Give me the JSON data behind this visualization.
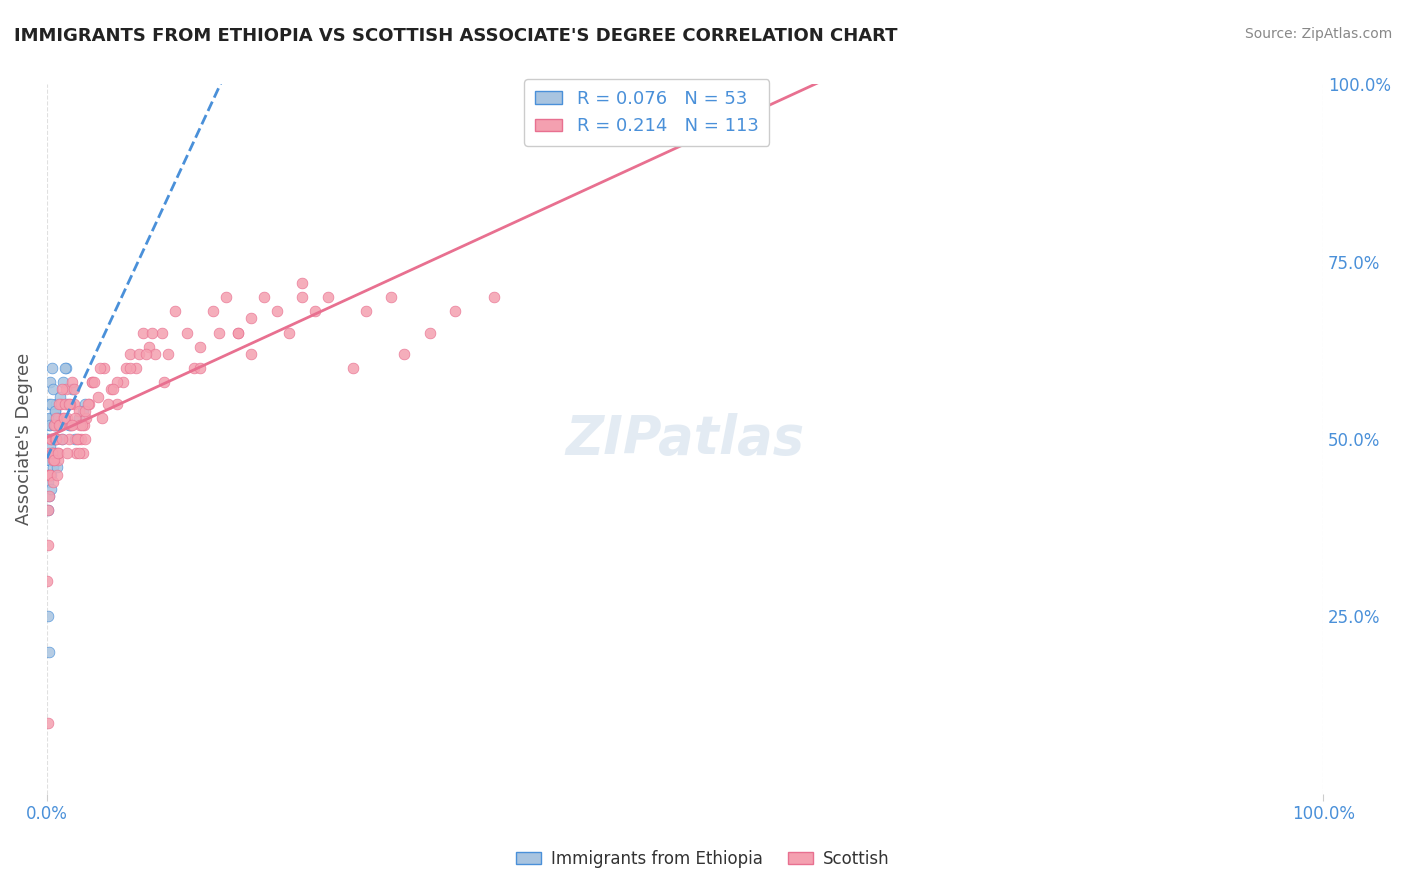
{
  "title": "IMMIGRANTS FROM ETHIOPIA VS SCOTTISH ASSOCIATE'S DEGREE CORRELATION CHART",
  "source": "Source: ZipAtlas.com",
  "xlabel": "",
  "ylabel": "Associate's Degree",
  "xlim": [
    0,
    100
  ],
  "ylim": [
    0,
    100
  ],
  "x_ticks": [
    0,
    10,
    20,
    30,
    40,
    50,
    60,
    70,
    80,
    90,
    100
  ],
  "x_tick_labels": [
    "0.0%",
    "",
    "",
    "",
    "",
    "",
    "",
    "",
    "",
    "",
    "100.0%"
  ],
  "y_ticks_right": [
    25,
    50,
    75,
    100
  ],
  "y_tick_labels_right": [
    "25.0%",
    "50.0%",
    "75.0%",
    "100.0%"
  ],
  "series1_color": "#a8c4e0",
  "series2_color": "#f4a0b0",
  "trend1_color": "#4a90d9",
  "trend2_color": "#e87090",
  "R1": 0.076,
  "N1": 53,
  "R2": 0.214,
  "N2": 113,
  "legend_label1": "Immigrants from Ethiopia",
  "legend_label2": "Scottish",
  "watermark": "ZIPatlas",
  "background_color": "#ffffff",
  "grid_color": "#e0e0e0",
  "title_color": "#222222",
  "axis_label_color": "#4a90d9",
  "series1_x": [
    0.1,
    0.15,
    0.2,
    0.25,
    0.3,
    0.35,
    0.4,
    0.5,
    0.6,
    0.7,
    0.8,
    1.0,
    1.2,
    1.5,
    2.0,
    2.5,
    3.0,
    0.05,
    0.08,
    0.12,
    0.18,
    0.22,
    0.28,
    0.32,
    0.38,
    0.45,
    0.55,
    0.65,
    0.75,
    0.9,
    1.1,
    1.3,
    1.6,
    1.8,
    2.2,
    2.8,
    0.06,
    0.09,
    0.14,
    0.19,
    0.24,
    0.29,
    0.34,
    0.39,
    0.44,
    0.52,
    0.62,
    0.72,
    0.82,
    1.4,
    1.7,
    0.05,
    0.16
  ],
  "series1_y": [
    50,
    52,
    55,
    58,
    48,
    53,
    60,
    57,
    54,
    55,
    52,
    56,
    50,
    60,
    57,
    53,
    55,
    45,
    48,
    50,
    53,
    47,
    52,
    55,
    50,
    48,
    52,
    54,
    50,
    53,
    52,
    58,
    55,
    52,
    50,
    54,
    40,
    44,
    42,
    47,
    49,
    43,
    45,
    48,
    46,
    50,
    52,
    48,
    46,
    60,
    52,
    25,
    20
  ],
  "series2_x": [
    0.1,
    0.3,
    0.5,
    0.7,
    0.9,
    1.1,
    1.3,
    1.5,
    1.7,
    1.9,
    2.1,
    2.3,
    2.5,
    2.7,
    2.9,
    3.1,
    3.3,
    3.5,
    4.0,
    4.5,
    5.0,
    5.5,
    6.0,
    6.5,
    7.0,
    7.5,
    8.0,
    8.5,
    9.0,
    10.0,
    11.0,
    12.0,
    13.0,
    14.0,
    15.0,
    16.0,
    17.0,
    18.0,
    20.0,
    22.0,
    25.0,
    27.0,
    30.0,
    32.0,
    35.0,
    0.15,
    0.25,
    0.35,
    0.45,
    0.55,
    0.65,
    0.75,
    0.85,
    0.95,
    1.0,
    1.2,
    1.4,
    1.6,
    1.8,
    2.0,
    2.2,
    2.4,
    2.6,
    2.8,
    3.0,
    3.5,
    4.2,
    4.8,
    5.5,
    6.2,
    7.2,
    8.2,
    9.5,
    11.5,
    13.5,
    16.0,
    19.0,
    21.0,
    24.0,
    28.0,
    0.08,
    0.18,
    0.28,
    0.38,
    0.48,
    0.58,
    0.68,
    0.78,
    0.88,
    0.98,
    1.15,
    1.35,
    1.55,
    1.75,
    1.95,
    2.15,
    2.35,
    2.55,
    2.75,
    2.95,
    3.2,
    3.7,
    4.3,
    5.2,
    6.5,
    7.8,
    9.2,
    12.0,
    15.0,
    20.0,
    0.05,
    0.04,
    0.06
  ],
  "series2_y": [
    45,
    50,
    48,
    52,
    47,
    55,
    53,
    57,
    50,
    52,
    55,
    48,
    54,
    50,
    52,
    53,
    55,
    58,
    56,
    60,
    57,
    55,
    58,
    62,
    60,
    65,
    63,
    62,
    65,
    68,
    65,
    63,
    68,
    70,
    65,
    67,
    70,
    68,
    72,
    70,
    68,
    70,
    65,
    68,
    70,
    48,
    45,
    50,
    47,
    52,
    50,
    53,
    48,
    55,
    52,
    57,
    55,
    53,
    55,
    58,
    53,
    50,
    52,
    48,
    54,
    58,
    60,
    55,
    58,
    60,
    62,
    65,
    62,
    60,
    65,
    62,
    65,
    68,
    60,
    62,
    40,
    42,
    45,
    48,
    44,
    47,
    50,
    45,
    48,
    52,
    50,
    53,
    48,
    55,
    52,
    57,
    50,
    48,
    52,
    50,
    55,
    58,
    53,
    57,
    60,
    62,
    58,
    60,
    65,
    70,
    35,
    30,
    10
  ]
}
